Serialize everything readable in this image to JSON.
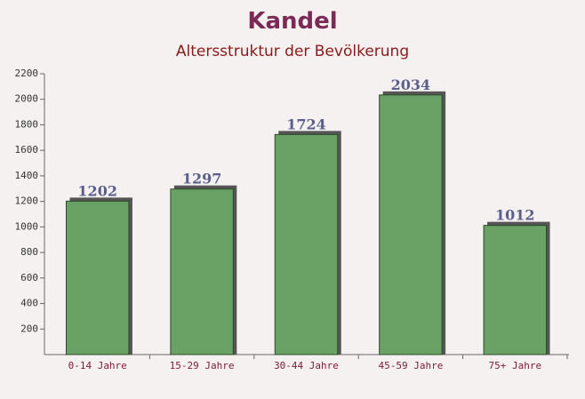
{
  "chart_data": {
    "type": "bar",
    "title": "Kandel",
    "subtitle": "Altersstruktur der Bevölkerung",
    "categories": [
      "0-14 Jahre",
      "15-29 Jahre",
      "30-44 Jahre",
      "45-59 Jahre",
      "75+ Jahre"
    ],
    "values": [
      1202,
      1297,
      1724,
      2034,
      1012
    ],
    "color": "#6aa164",
    "ylim": [
      0,
      2200
    ],
    "yticks": [
      200,
      400,
      600,
      800,
      1000,
      1200,
      1400,
      1600,
      1800,
      2000,
      2200
    ]
  }
}
